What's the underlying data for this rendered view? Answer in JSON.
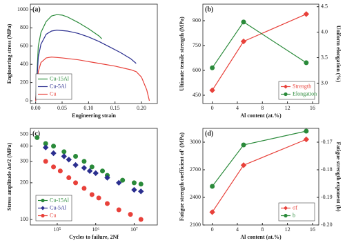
{
  "chart_data": [
    {
      "type": "line",
      "label": "(a)",
      "xlabel": "Engineering  strain",
      "ylabel": "Engineering stress (MPa)",
      "legend": "lower left",
      "xlim": [
        -0.01,
        0.23
      ],
      "xticks": [
        {
          "value": 0,
          "label": "0.00"
        },
        0.05,
        {
          "value": 0.1,
          "label": "0.10"
        },
        0.15,
        {
          "value": 0.2,
          "label": "0.20"
        }
      ],
      "ylim": [
        -30,
        1060
      ],
      "yticks": [
        0,
        200,
        400,
        600,
        800,
        1000
      ],
      "series": [
        {
          "name": "Cu-15Al",
          "color": "#2a8a3a",
          "x": [
            0,
            0.005,
            0.01,
            0.02,
            0.03,
            0.04,
            0.05,
            0.06,
            0.08,
            0.1,
            0.12,
            0.125
          ],
          "values": [
            0,
            600,
            750,
            870,
            930,
            945,
            940,
            920,
            860,
            790,
            710,
            680
          ]
        },
        {
          "name": "Cu-5Al",
          "color": "#2b2f8f",
          "x": [
            0,
            0.005,
            0.01,
            0.02,
            0.03,
            0.04,
            0.06,
            0.08,
            0.1,
            0.12,
            0.14,
            0.16,
            0.18,
            0.19
          ],
          "values": [
            0,
            480,
            620,
            730,
            765,
            775,
            765,
            740,
            700,
            650,
            590,
            530,
            460,
            410
          ]
        },
        {
          "name": "Cu",
          "color": "#e8413a",
          "x": [
            0,
            0.005,
            0.01,
            0.02,
            0.03,
            0.05,
            0.08,
            0.1,
            0.12,
            0.15,
            0.18,
            0.19,
            0.2,
            0.21,
            0.215
          ],
          "values": [
            0,
            320,
            420,
            470,
            480,
            470,
            450,
            430,
            410,
            380,
            340,
            320,
            260,
            120,
            0
          ]
        }
      ]
    },
    {
      "type": "line",
      "label": "(b)",
      "xlabel": "Al content (at.%)",
      "ylabel": "Ultimate tensile strength (MPa)",
      "y2label": "Uniform elongation (%)",
      "legend": "lower right",
      "xlim": [
        -1.5,
        17
      ],
      "xticks": [
        0,
        4,
        8,
        12,
        16
      ],
      "ylim": [
        400,
        1000
      ],
      "yticks": [
        450,
        600,
        750,
        900
      ],
      "y2lim": [
        2.6,
        4.55
      ],
      "y2ticks": [
        {
          "value": 3,
          "label": "3.0"
        },
        3.5,
        {
          "value": 4,
          "label": "4.0"
        },
        4.5
      ],
      "x": [
        0,
        5,
        15
      ],
      "series": [
        {
          "name": "Strength",
          "color": "#e8413a",
          "marker": "diamond",
          "values": [
            480,
            775,
            940
          ]
        },
        {
          "name": "Elongation",
          "color": "#2a8a3a",
          "marker": "circle",
          "axis": "y2",
          "values": [
            3.3,
            4.2,
            3.4
          ]
        }
      ]
    },
    {
      "type": "scatter",
      "label": "(c)",
      "xlabel": "Cycles to failure, 2Nf",
      "ylabel": "Stress amplitude Δσ/2 (MPa)",
      "legend": "lower left",
      "log": true,
      "xlim": [
        20000,
        40000000
      ],
      "xticks": [
        {
          "value": 100000,
          "label": "10⁵"
        },
        {
          "value": 1000000,
          "label": "10⁶"
        },
        {
          "value": 10000000,
          "label": "10⁷"
        }
      ],
      "ylim": [
        90,
        560
      ],
      "yticks": [
        100,
        200,
        300,
        400,
        500
      ],
      "series": [
        {
          "name": "Cu-15Al",
          "color": "#2a8a3a",
          "marker": "circle",
          "x": [
            30000,
            50000,
            80000,
            150000,
            300000,
            500000,
            800000,
            1500000,
            2000000,
            5000000,
            10000000,
            15000000
          ],
          "values": [
            470,
            420,
            400,
            360,
            330,
            300,
            270,
            250,
            230,
            210,
            200,
            195
          ]
        },
        {
          "name": "Cu-5Al",
          "color": "#2b2f8f",
          "marker": "diamond",
          "x": [
            50000,
            80000,
            150000,
            200000,
            300000,
            500000,
            700000,
            1000000,
            2000000,
            4000000,
            10000000,
            15000000
          ],
          "values": [
            390,
            350,
            330,
            310,
            280,
            265,
            250,
            240,
            220,
            200,
            175,
            170
          ]
        },
        {
          "name": "Cu",
          "color": "#e8413a",
          "marker": "circle",
          "x": [
            50000,
            80000,
            120000,
            200000,
            300000,
            500000,
            800000,
            1200000,
            2000000,
            4000000,
            8000000,
            15000000
          ],
          "values": [
            300,
            270,
            250,
            220,
            200,
            180,
            160,
            150,
            135,
            120,
            110,
            100
          ]
        }
      ]
    },
    {
      "type": "line",
      "label": "(d)",
      "xlabel": "Al content (at.%)",
      "ylabel": "Fatigue strength coefficient σf' (MPa)",
      "y2label": "Fatigue strength exponent (b)",
      "legend": "lower right",
      "xlim": [
        -1.5,
        17
      ],
      "xticks": [
        0,
        4,
        8,
        12,
        16
      ],
      "ylim": [
        2100,
        3150
      ],
      "yticks": [
        2100,
        2400,
        2700,
        3000
      ],
      "y2lim": [
        -0.2,
        -0.165
      ],
      "y2ticks": [
        {
          "value": -0.2,
          "label": "-0.20"
        },
        -0.19,
        -0.18,
        -0.17
      ],
      "x": [
        0,
        5,
        15
      ],
      "series": [
        {
          "name": "σf",
          "color": "#e8413a",
          "marker": "diamond",
          "values": [
            2240,
            2750,
            3030
          ]
        },
        {
          "name": "b",
          "color": "#2a8a3a",
          "marker": "circle",
          "axis": "y2",
          "values": [
            -0.186,
            -0.171,
            -0.166
          ]
        }
      ]
    }
  ]
}
